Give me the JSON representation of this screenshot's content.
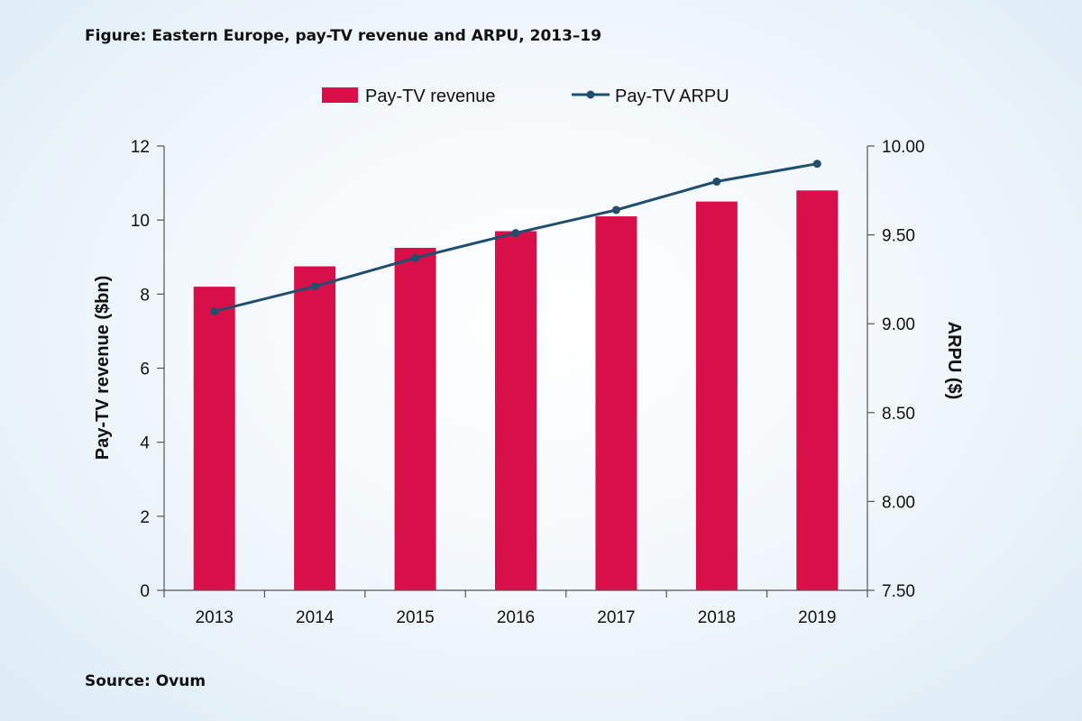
{
  "figure": {
    "title": "Figure: Eastern Europe, pay-TV revenue and ARPU, 2013–19",
    "source": "Source: Ovum"
  },
  "colors": {
    "bar": "#d90f4a",
    "line": "#1f4e6e",
    "axis": "#555555"
  },
  "chart_data": {
    "type": "bar",
    "title": "Figure: Eastern Europe, pay-TV revenue and ARPU, 2013–19",
    "categories": [
      "2013",
      "2014",
      "2015",
      "2016",
      "2017",
      "2018",
      "2019"
    ],
    "series": [
      {
        "name": "Pay-TV revenue",
        "type": "bar",
        "axis": "left",
        "values": [
          8.2,
          8.75,
          9.25,
          9.7,
          10.1,
          10.5,
          10.8
        ]
      },
      {
        "name": "Pay-TV ARPU",
        "type": "line",
        "axis": "right",
        "values": [
          9.07,
          9.21,
          9.37,
          9.51,
          9.64,
          9.8,
          9.9
        ]
      }
    ],
    "left_axis": {
      "label": "Pay-TV revenue ($bn)",
      "range": [
        0,
        12
      ],
      "ticks": [
        "0",
        "2",
        "4",
        "6",
        "8",
        "10",
        "12"
      ]
    },
    "right_axis": {
      "label": "ARPU ($)",
      "range": [
        7.5,
        10
      ],
      "ticks": [
        "7.50",
        "8.00",
        "8.50",
        "9.00",
        "9.50",
        "10.00"
      ]
    },
    "legend": {
      "placement": "top-center",
      "entries": [
        "Pay-TV revenue",
        "Pay-TV ARPU"
      ]
    },
    "grid": false
  }
}
